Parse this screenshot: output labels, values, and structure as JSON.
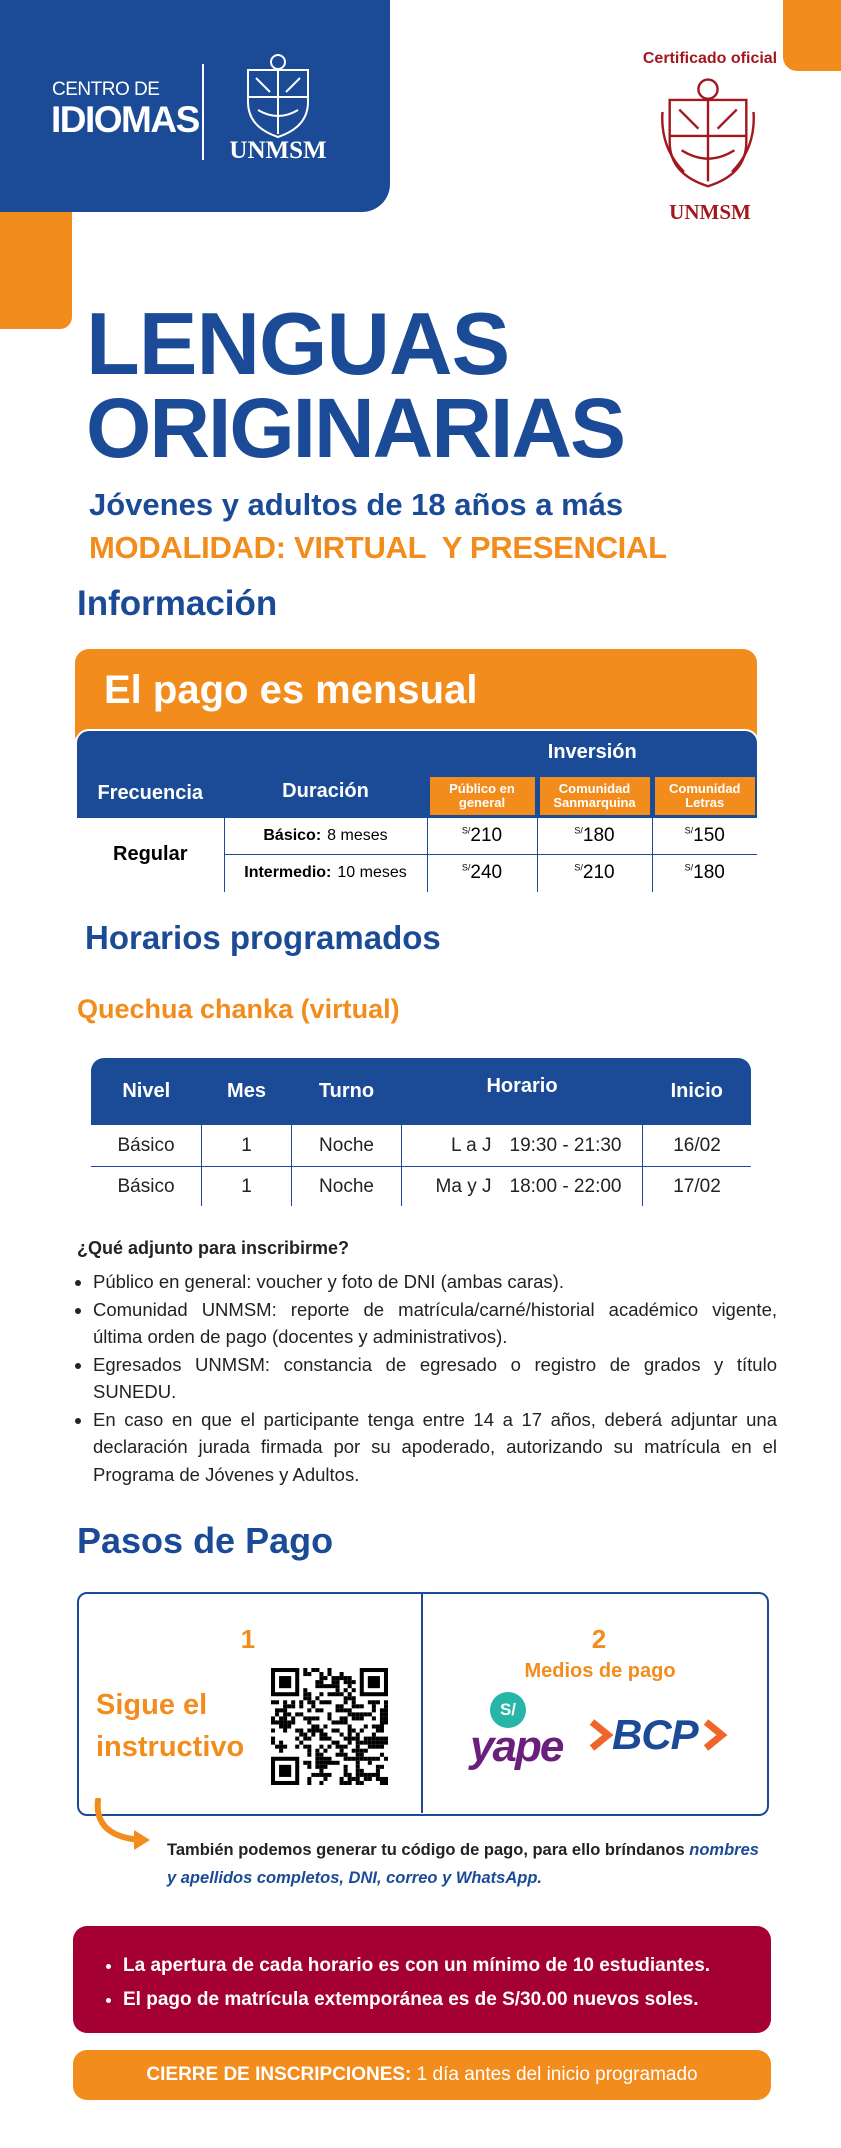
{
  "header": {
    "logo_line1": "CENTRO DE",
    "logo_line2": "IDIOMAS",
    "logo_university": "UNMSM",
    "certificate_label": "Certificado oficial",
    "certificate_university": "UNMSM"
  },
  "title": {
    "line1": "LENGUAS",
    "line2": "ORIGINARIAS",
    "audience": "Jóvenes y adultos de 18 años a más",
    "modality": "MODALIDAD: VIRTUAL  Y PRESENCIAL"
  },
  "info": {
    "heading": "Información",
    "banner": "El pago es mensual",
    "table": {
      "headers": {
        "frequency": "Frecuencia",
        "duration": "Duración",
        "investment": "Inversión",
        "prices": [
          "Público en general",
          "Comunidad Sanmarquina",
          "Comunidad Letras"
        ]
      },
      "frequency": "Regular",
      "currency": "S/",
      "rows": [
        {
          "level": "Básico:",
          "duration": "8 meses",
          "prices": [
            210,
            180,
            150
          ]
        },
        {
          "level": "Intermedio:",
          "duration": "10 meses",
          "prices": [
            240,
            210,
            180
          ]
        }
      ]
    }
  },
  "schedule": {
    "heading": "Horarios programados",
    "course": "Quechua chanka (virtual)",
    "table": {
      "headers": [
        "Nivel",
        "Mes",
        "Turno",
        "Horario",
        "Inicio"
      ],
      "rows": [
        [
          "Básico",
          1,
          "Noche",
          "L a J",
          "19:30 - 21:30",
          "16/02"
        ],
        [
          "Básico",
          1,
          "Noche",
          "Ma y J",
          "18:00 - 22:00",
          "17/02"
        ]
      ]
    }
  },
  "requirements": {
    "question": "¿Qué adjunto para inscribirme?",
    "items": [
      "Público en general: voucher y foto de DNI (ambas caras).",
      "Comunidad UNMSM: reporte de matrícula/carné/historial académico vigente, última orden de pago (docentes y administrativos).",
      "Egresados UNMSM: constancia de egresado o registro de grados y título SUNEDU.",
      "En caso en que el participante tenga entre 14 a 17 años, deberá adjuntar una declaración jurada firmada por su apoderado, autorizando su matrícula en el Programa de Jóvenes y Adultos."
    ]
  },
  "payment": {
    "heading": "Pasos de Pago",
    "step1": {
      "number": 1,
      "label": "Sigue el instructivo"
    },
    "step2": {
      "number": 2,
      "label": "Medios de pago",
      "methods": [
        "yape",
        "BCP"
      ]
    },
    "note": "También podemos generar tu código de pago, para ello bríndanos ",
    "note_emphasis": "nombres y apellidos completos, DNI, correo y WhatsApp."
  },
  "notices": [
    "La apertura de cada horario es con un mínimo de 10 estudiantes.",
    "El pago de matrícula extemporánea es de S/30.00 nuevos soles."
  ],
  "deadline": {
    "label": "CIERRE DE INSCRIPCIONES:",
    "text": " 1 día antes del inicio programado"
  }
}
